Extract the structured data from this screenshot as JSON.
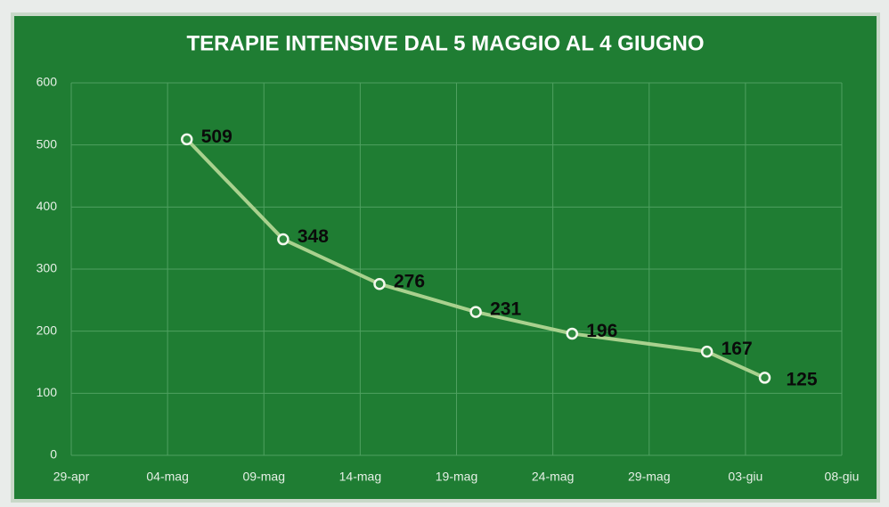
{
  "chart_data": {
    "type": "line",
    "title": "TERAPIE INTENSIVE DAL 5 MAGGIO AL 4 GIUGNO",
    "x": [
      "05-mag",
      "10-mag",
      "15-mag",
      "20-mag",
      "25-mag",
      "01-giu",
      "04-giu"
    ],
    "series": [
      {
        "name": "Terapie intensive",
        "color": "#a9d18e",
        "values": [
          509,
          348,
          276,
          231,
          196,
          167,
          125
        ]
      }
    ],
    "xlim": [
      120,
      160
    ],
    "xticks": [
      {
        "value": 120,
        "label": "29-apr"
      },
      {
        "value": 125,
        "label": "04-mag"
      },
      {
        "value": 130,
        "label": "09-mag"
      },
      {
        "value": 135,
        "label": "14-mag"
      },
      {
        "value": 140,
        "label": "19-mag"
      },
      {
        "value": 145,
        "label": "24-mag"
      },
      {
        "value": 150,
        "label": "29-mag"
      },
      {
        "value": 155,
        "label": "03-giu"
      },
      {
        "value": 160,
        "label": "08-giu"
      }
    ],
    "ylim": [
      0,
      600
    ],
    "yticks": [
      0,
      100,
      200,
      300,
      400,
      500,
      600
    ],
    "grid": true
  }
}
